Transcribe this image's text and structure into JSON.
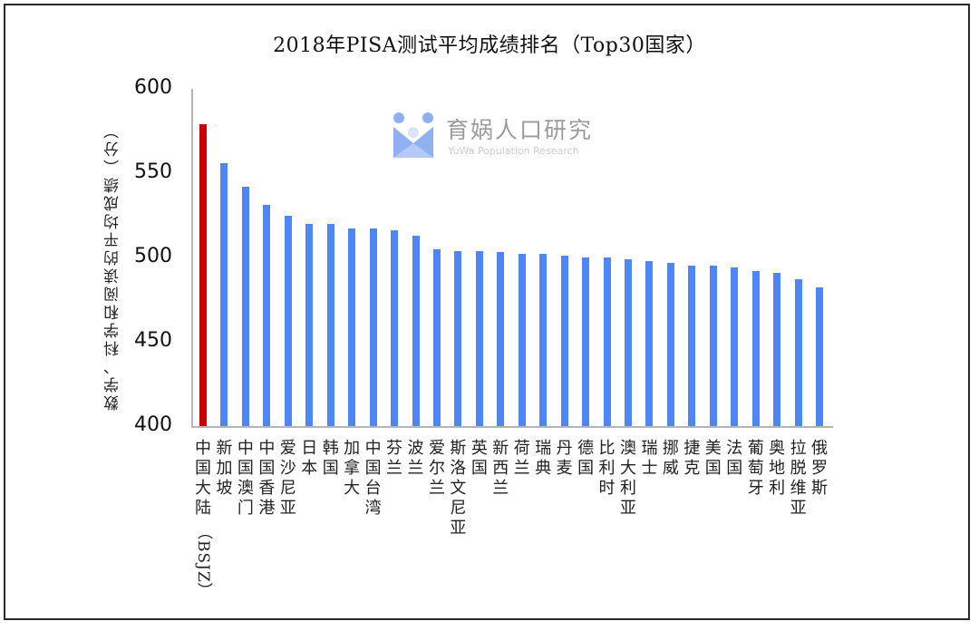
{
  "title": "2018年PISA测试平均成绩排名（Top30国家）",
  "watermark": {
    "text": "育娲人口研究",
    "subtext": "YuWa Population Research",
    "icon": "yuwa-logo-icon"
  },
  "colors": {
    "highlight": "#cc0000",
    "bar": "#4f86f7",
    "axis": "#b5b5b5"
  },
  "chart_data": {
    "type": "bar",
    "title": "2018年PISA测试平均成绩排名（Top30国家）",
    "xlabel": "",
    "ylabel": "数学、科学和阅读的平均成绩（分）",
    "ylim": [
      400,
      600
    ],
    "yticks": [
      400,
      450,
      500,
      550,
      600
    ],
    "grid": false,
    "legend": null,
    "categories": [
      "中国大陆（BSJZ）",
      "新加坡",
      "中国澳门",
      "中国香港",
      "爱沙尼亚",
      "日本",
      "韩国",
      "加拿大",
      "中国台湾",
      "芬兰",
      "波兰",
      "爱尔兰",
      "斯洛文尼亚",
      "英国",
      "新西兰",
      "荷兰",
      "瑞典",
      "丹麦",
      "德国",
      "比利时",
      "澳大利亚",
      "瑞士",
      "挪威",
      "捷克",
      "美国",
      "法国",
      "葡萄牙",
      "奥地利",
      "拉脱维亚",
      "俄罗斯"
    ],
    "values": [
      579,
      556,
      542,
      531,
      525,
      520,
      520,
      517,
      517,
      516,
      513,
      505,
      504,
      504,
      503,
      502,
      502,
      501,
      500,
      500,
      499,
      498,
      497,
      495,
      495,
      494,
      492,
      491,
      487,
      482
    ],
    "highlight_index": 0
  },
  "x_labels": [
    {
      "main": "中国大陆",
      "sub": "（BSJZ）"
    },
    {
      "main": "新加坡"
    },
    {
      "main": "中国澳门"
    },
    {
      "main": "中国香港"
    },
    {
      "main": "爱沙尼亚"
    },
    {
      "main": "日本"
    },
    {
      "main": "韩国"
    },
    {
      "main": "加拿大"
    },
    {
      "main": "中国台湾"
    },
    {
      "main": "芬兰"
    },
    {
      "main": "波兰"
    },
    {
      "main": "爱尔兰"
    },
    {
      "main": "斯洛文尼亚"
    },
    {
      "main": "英国"
    },
    {
      "main": "新西兰"
    },
    {
      "main": "荷兰"
    },
    {
      "main": "瑞典"
    },
    {
      "main": "丹麦"
    },
    {
      "main": "德国"
    },
    {
      "main": "比利时"
    },
    {
      "main": "澳大利亚"
    },
    {
      "main": "瑞士"
    },
    {
      "main": "挪威"
    },
    {
      "main": "捷克"
    },
    {
      "main": "美国"
    },
    {
      "main": "法国"
    },
    {
      "main": "葡萄牙"
    },
    {
      "main": "奥地利"
    },
    {
      "main": "拉脱维亚"
    },
    {
      "main": "俄罗斯"
    }
  ]
}
